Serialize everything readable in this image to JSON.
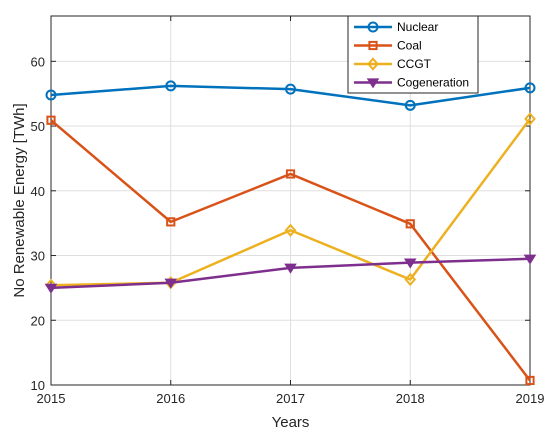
{
  "chart_data": {
    "type": "line",
    "x": [
      2015,
      2016,
      2017,
      2018,
      2019
    ],
    "xlabel": "Years",
    "ylabel": "No Renewable Energy [TWh]",
    "xlim": [
      2015,
      2019
    ],
    "ylim": [
      10,
      67
    ],
    "yticks": [
      10,
      20,
      30,
      40,
      50,
      60
    ],
    "grid": true,
    "legend_position": "top-right",
    "series": [
      {
        "name": "Nuclear",
        "values": [
          54.8,
          56.2,
          55.7,
          53.2,
          55.9
        ],
        "color": "#0072BD",
        "marker": "circle"
      },
      {
        "name": "Coal",
        "values": [
          50.9,
          35.2,
          42.6,
          34.9,
          10.7
        ],
        "color": "#D95319",
        "marker": "square"
      },
      {
        "name": "CCGT",
        "values": [
          25.4,
          25.8,
          33.9,
          26.3,
          51.1
        ],
        "color": "#EDB120",
        "marker": "diamond"
      },
      {
        "name": "Cogeneration",
        "values": [
          25.0,
          25.8,
          28.1,
          28.9,
          29.5
        ],
        "color": "#7E2F8E",
        "marker": "triangle-down"
      }
    ]
  }
}
